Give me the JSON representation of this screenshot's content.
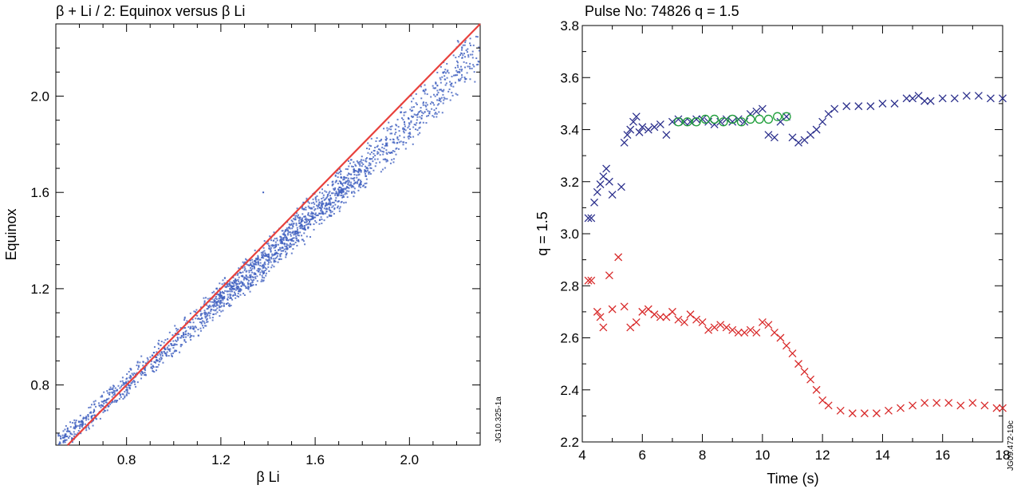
{
  "chart_data": [
    {
      "type": "scatter",
      "title": "β + Li / 2: Equinox versus β Li",
      "xlabel": "β Li",
      "ylabel": "Equinox",
      "xlim": [
        0.5,
        2.3
      ],
      "ylim": [
        0.55,
        2.3
      ],
      "xticks": [
        0.8,
        1.2,
        1.6,
        2.0
      ],
      "xtick_labels": [
        "0.8",
        "1.2",
        "1.6",
        "2.0"
      ],
      "yticks": [
        0.8,
        1.2,
        1.6,
        2.0
      ],
      "ytick_labels": [
        "0.8",
        "1.2",
        "1.6",
        "2.0"
      ],
      "figure_code": "JG10.325-1a",
      "grid": false,
      "series": [
        {
          "kind": "cloud",
          "color": "#3f5fbf",
          "description_points": [
            [
              0.52,
              0.56
            ],
            [
              0.55,
              0.59
            ],
            [
              0.6,
              0.63
            ],
            [
              0.65,
              0.67
            ],
            [
              0.7,
              0.72
            ],
            [
              0.75,
              0.76
            ],
            [
              0.8,
              0.8
            ],
            [
              0.85,
              0.85
            ],
            [
              0.9,
              0.89
            ],
            [
              0.95,
              0.93
            ],
            [
              1.0,
              0.98
            ],
            [
              1.05,
              1.02
            ],
            [
              1.1,
              1.06
            ],
            [
              1.15,
              1.11
            ],
            [
              1.2,
              1.16
            ],
            [
              1.25,
              1.2
            ],
            [
              1.3,
              1.24
            ],
            [
              1.35,
              1.28
            ],
            [
              1.4,
              1.33
            ],
            [
              1.45,
              1.38
            ],
            [
              1.5,
              1.42
            ],
            [
              1.55,
              1.47
            ],
            [
              1.6,
              1.52
            ],
            [
              1.65,
              1.56
            ],
            [
              1.7,
              1.61
            ],
            [
              1.75,
              1.65
            ],
            [
              1.8,
              1.7
            ],
            [
              1.85,
              1.75
            ],
            [
              1.9,
              1.79
            ],
            [
              1.95,
              1.84
            ],
            [
              2.0,
              1.89
            ],
            [
              2.05,
              1.94
            ],
            [
              2.1,
              1.98
            ],
            [
              2.15,
              2.04
            ],
            [
              2.2,
              2.1
            ],
            [
              2.25,
              2.16
            ],
            [
              2.28,
              2.2
            ],
            [
              1.38,
              1.6
            ],
            [
              0.55,
              0.62
            ]
          ]
        },
        {
          "kind": "line",
          "color": "#e8413c",
          "x": [
            0.5,
            2.3
          ],
          "y": [
            0.5,
            2.3
          ]
        }
      ]
    },
    {
      "type": "scatter",
      "title": "Pulse No: 74826 q = 1.5",
      "xlabel": "Time (s)",
      "ylabel": "q = 1.5",
      "xlim": [
        4,
        18
      ],
      "ylim": [
        2.2,
        3.8
      ],
      "xticks": [
        4,
        6,
        8,
        10,
        12,
        14,
        16,
        18
      ],
      "xtick_labels": [
        "4",
        "6",
        "8",
        "10",
        "12",
        "14",
        "16",
        "18"
      ],
      "yticks": [
        2.2,
        2.4,
        2.6,
        2.8,
        3.0,
        3.2,
        3.4,
        3.6,
        3.8
      ],
      "ytick_labels": [
        "2.2",
        "2.4",
        "2.6",
        "2.8",
        "3.0",
        "3.2",
        "3.4",
        "3.6",
        "3.8"
      ],
      "figure_code": "JG09.472-19c",
      "grid": false,
      "series": [
        {
          "marker": "x",
          "color": "#2b2f8c",
          "x": [
            4.2,
            4.3,
            4.4,
            4.5,
            4.6,
            4.7,
            4.8,
            4.9,
            5.0,
            5.3,
            5.4,
            5.5,
            5.6,
            5.7,
            5.8,
            5.9,
            6.0,
            6.2,
            6.4,
            6.6,
            6.8,
            7.0,
            7.2,
            7.4,
            7.6,
            7.8,
            8.0,
            8.2,
            8.4,
            8.6,
            8.8,
            9.0,
            9.2,
            9.4,
            9.6,
            9.8,
            10.0,
            10.2,
            10.4,
            10.6,
            10.8,
            11.0,
            11.2,
            11.4,
            11.6,
            11.8,
            12.0,
            12.2,
            12.4,
            12.8,
            13.2,
            13.6,
            14.0,
            14.4,
            14.8,
            15.0,
            15.2,
            15.4,
            15.6,
            16.0,
            16.4,
            16.8,
            17.2,
            17.6,
            18.0
          ],
          "y": [
            3.06,
            3.06,
            3.12,
            3.16,
            3.19,
            3.22,
            3.25,
            3.2,
            3.15,
            3.18,
            3.35,
            3.38,
            3.4,
            3.43,
            3.45,
            3.39,
            3.41,
            3.4,
            3.41,
            3.42,
            3.38,
            3.43,
            3.44,
            3.43,
            3.43,
            3.44,
            3.44,
            3.43,
            3.42,
            3.43,
            3.44,
            3.43,
            3.44,
            3.43,
            3.46,
            3.47,
            3.48,
            3.38,
            3.37,
            3.43,
            3.45,
            3.37,
            3.35,
            3.36,
            3.38,
            3.4,
            3.43,
            3.46,
            3.48,
            3.49,
            3.49,
            3.49,
            3.5,
            3.5,
            3.52,
            3.52,
            3.53,
            3.51,
            3.51,
            3.52,
            3.52,
            3.53,
            3.53,
            3.52,
            3.52
          ]
        },
        {
          "marker": "o",
          "color": "#1f9e3a",
          "x": [
            7.2,
            7.5,
            7.8,
            8.1,
            8.4,
            8.7,
            9.0,
            9.3,
            9.6,
            9.9,
            10.2,
            10.5,
            10.8
          ],
          "y": [
            3.43,
            3.43,
            3.43,
            3.44,
            3.44,
            3.43,
            3.44,
            3.43,
            3.44,
            3.44,
            3.44,
            3.45,
            3.45
          ]
        },
        {
          "marker": "x",
          "color": "#d82a2a",
          "x": [
            4.2,
            4.3,
            4.5,
            4.6,
            4.7,
            4.9,
            5.0,
            5.2,
            5.4,
            5.6,
            5.8,
            6.0,
            6.2,
            6.4,
            6.6,
            6.8,
            7.0,
            7.2,
            7.4,
            7.6,
            7.8,
            8.0,
            8.2,
            8.4,
            8.6,
            8.8,
            9.0,
            9.2,
            9.4,
            9.6,
            9.8,
            10.0,
            10.2,
            10.4,
            10.6,
            10.8,
            11.0,
            11.2,
            11.4,
            11.6,
            11.8,
            12.0,
            12.2,
            12.6,
            13.0,
            13.4,
            13.8,
            14.2,
            14.6,
            15.0,
            15.4,
            15.8,
            16.2,
            16.6,
            17.0,
            17.4,
            17.8,
            18.0
          ],
          "y": [
            2.82,
            2.82,
            2.7,
            2.68,
            2.64,
            2.84,
            2.71,
            2.91,
            2.72,
            2.64,
            2.66,
            2.7,
            2.71,
            2.69,
            2.68,
            2.68,
            2.7,
            2.67,
            2.66,
            2.69,
            2.67,
            2.66,
            2.63,
            2.64,
            2.65,
            2.64,
            2.63,
            2.62,
            2.62,
            2.63,
            2.62,
            2.66,
            2.65,
            2.62,
            2.6,
            2.57,
            2.54,
            2.5,
            2.47,
            2.44,
            2.4,
            2.36,
            2.34,
            2.32,
            2.31,
            2.31,
            2.31,
            2.32,
            2.33,
            2.34,
            2.35,
            2.35,
            2.35,
            2.34,
            2.35,
            2.34,
            2.33,
            2.33
          ]
        }
      ]
    }
  ]
}
